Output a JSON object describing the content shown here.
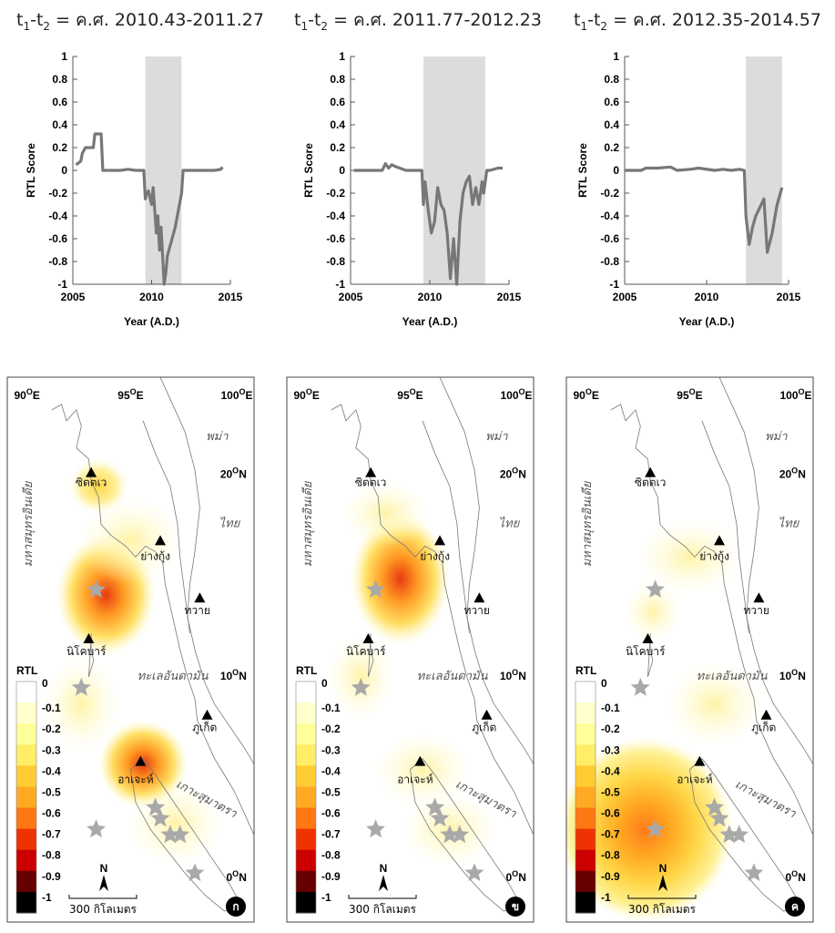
{
  "chart_data": [
    {
      "type": "line",
      "title": "t1-t2 = ค.ศ. 2010.43-2011.27",
      "xlabel": "Year (A.D.)",
      "ylabel": "RTL Score",
      "xlim": [
        2005,
        2015
      ],
      "ylim": [
        -1,
        1
      ],
      "xticks": [
        2005,
        2010,
        2015
      ],
      "yticks": [
        1,
        0.8,
        0.6,
        0.4,
        0.2,
        0,
        -0.2,
        -0.4,
        -0.6,
        -0.8,
        -1
      ],
      "shaded_interval": [
        2009.6,
        2011.9
      ],
      "series": [
        {
          "x": [
            2005.2,
            2005.5,
            2005.6,
            2005.8,
            2005.9,
            2006.3,
            2006.4,
            2006.8,
            2006.9,
            2007.5,
            2008.0,
            2008.5,
            2009.0,
            2009.5,
            2009.6,
            2009.7,
            2009.8,
            2010.0,
            2010.1,
            2010.3,
            2010.4,
            2010.5,
            2010.6,
            2010.7,
            2010.8,
            2010.9,
            2011.0,
            2011.5,
            2011.9,
            2012.0,
            2012.5,
            2013.0,
            2014.0,
            2014.4,
            2014.5
          ],
          "y": [
            0.05,
            0.08,
            0.15,
            0.2,
            0.2,
            0.2,
            0.32,
            0.32,
            0.0,
            0.0,
            0.0,
            0.01,
            0.0,
            0.0,
            -0.25,
            -0.2,
            -0.18,
            -0.3,
            -0.15,
            -0.55,
            -0.4,
            -0.7,
            -0.5,
            -0.75,
            -1.0,
            -0.9,
            -0.75,
            -0.5,
            -0.2,
            0.0,
            0.0,
            0.0,
            0.0,
            0.01,
            0.03
          ]
        }
      ],
      "title_sub": {
        "t": "t",
        "s1": "1",
        "dash": "-t",
        "s2": "2",
        "rest": " = ค.ศ. 2010.43-2011.27"
      }
    },
    {
      "type": "line",
      "title": "t1-t2 = ค.ศ. 2011.77-2012.23",
      "xlabel": "Year (A.D.)",
      "ylabel": "RTL Score",
      "xlim": [
        2005,
        2015
      ],
      "ylim": [
        -1,
        1
      ],
      "xticks": [
        2005,
        2010,
        2015
      ],
      "yticks": [
        1,
        0.8,
        0.6,
        0.4,
        0.2,
        0,
        -0.2,
        -0.4,
        -0.6,
        -0.8,
        -1
      ],
      "shaded_interval": [
        2009.6,
        2013.5
      ],
      "series": [
        {
          "x": [
            2005.2,
            2006.0,
            2007.0,
            2007.2,
            2007.4,
            2007.6,
            2007.9,
            2008.5,
            2009.0,
            2009.5,
            2009.6,
            2009.7,
            2009.9,
            2010.1,
            2010.3,
            2010.5,
            2010.7,
            2010.9,
            2011.1,
            2011.3,
            2011.5,
            2011.7,
            2011.9,
            2012.1,
            2012.3,
            2012.5,
            2012.7,
            2012.9,
            2013.1,
            2013.3,
            2013.4,
            2013.5,
            2013.6,
            2013.8,
            2014.3,
            2014.6
          ],
          "y": [
            0.0,
            0.0,
            0.0,
            0.06,
            0.02,
            0.05,
            0.03,
            0.0,
            0.0,
            0.0,
            -0.3,
            -0.1,
            -0.35,
            -0.55,
            -0.45,
            -0.15,
            -0.3,
            -0.35,
            -0.55,
            -0.95,
            -0.6,
            -1.0,
            -0.45,
            -0.2,
            -0.1,
            -0.05,
            -0.3,
            -0.15,
            -0.3,
            -0.1,
            -0.2,
            -0.1,
            0.0,
            0.0,
            0.02,
            0.02
          ]
        }
      ],
      "title_sub": {
        "t": "t",
        "s1": "1",
        "dash": "-t",
        "s2": "2",
        "rest": " = ค.ศ. 2011.77-2012.23"
      }
    },
    {
      "type": "line",
      "title": "t1-t2 = ค.ศ. 2012.35-2014.57",
      "xlabel": "Year (A.D.)",
      "ylabel": "RTL Score",
      "xlim": [
        2005,
        2015
      ],
      "ylim": [
        -1,
        1
      ],
      "xticks": [
        2005,
        2010,
        2015
      ],
      "yticks": [
        1,
        0.8,
        0.6,
        0.4,
        0.2,
        0,
        -0.2,
        -0.4,
        -0.6,
        -0.8,
        -1
      ],
      "shaded_interval": [
        2012.4,
        2014.6
      ],
      "series": [
        {
          "x": [
            2005.0,
            2006.0,
            2006.3,
            2007.0,
            2007.8,
            2008.2,
            2009.0,
            2009.5,
            2010.5,
            2011.0,
            2011.5,
            2012.0,
            2012.3,
            2012.4,
            2012.6,
            2012.8,
            2013.0,
            2013.5,
            2013.7,
            2014.0,
            2014.3,
            2014.6
          ],
          "y": [
            0.0,
            0.0,
            0.02,
            0.02,
            0.03,
            0.0,
            0.01,
            0.02,
            0.0,
            0.01,
            0.0,
            0.01,
            0.0,
            -0.4,
            -0.65,
            -0.5,
            -0.4,
            -0.25,
            -0.72,
            -0.55,
            -0.3,
            -0.15
          ]
        }
      ],
      "title_sub": {
        "t": "t",
        "s1": "1",
        "dash": "-t",
        "s2": "2",
        "rest": " = ค.ศ. 2012.35-2014.57"
      }
    },
    {
      "type": "heatmap",
      "title": "",
      "colorbar_label": "RTL",
      "colorbar_ticks": [
        "0",
        "-0.1",
        "-0.2",
        "-0.3",
        "-0.4",
        "-0.5",
        "-0.6",
        "-0.7",
        "-0.8",
        "-0.9",
        "-1"
      ],
      "colorbar_colors": [
        "#ffffff",
        "#ffffcc",
        "#ffff99",
        "#ffee66",
        "#ffcc33",
        "#ffaa22",
        "#ff7711",
        "#ee3300",
        "#cc0000",
        "#660000",
        "#000000"
      ]
    }
  ],
  "maps": {
    "lon_labels": [
      "90",
      "95",
      "100"
    ],
    "lon_suffix": "E",
    "lat_labels": [
      "20",
      "10",
      "0"
    ],
    "lat_suffix": "N",
    "deg": "O",
    "places": [
      "ซิตตเว",
      "ย่างกุ้ง",
      "ทวาย",
      "นิโคบาร์",
      "ภูเก็ต",
      "อาเจะห์"
    ],
    "regions": [
      "พม่า",
      "ไทย",
      "มหาสมุทรอินเดีย",
      "ทะเลอันดามัน",
      "เกาะสุมาตรา"
    ],
    "scale_text": "300 กิโลเมตร",
    "north": "N",
    "badges": [
      "ก",
      "ข",
      "ค"
    ]
  }
}
